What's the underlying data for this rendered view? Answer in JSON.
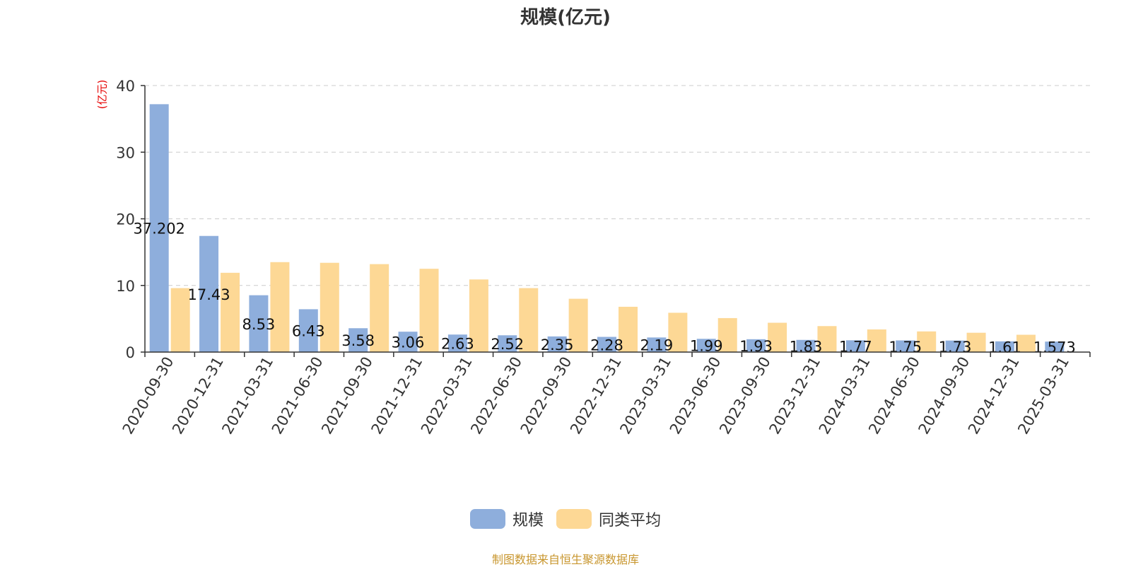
{
  "chart_data": {
    "type": "bar",
    "title": "规模(亿元)",
    "ylabel": "(亿元)",
    "ylim": [
      0,
      40
    ],
    "yticks": [
      0,
      10,
      20,
      30,
      40
    ],
    "grid": true,
    "legend_placement": "bottom",
    "categories": [
      "2020-09-30",
      "2020-12-31",
      "2021-03-31",
      "2021-06-30",
      "2021-09-30",
      "2021-12-31",
      "2022-03-31",
      "2022-06-30",
      "2022-09-30",
      "2022-12-31",
      "2023-03-31",
      "2023-06-30",
      "2023-09-30",
      "2023-12-31",
      "2024-03-31",
      "2024-06-30",
      "2024-09-30",
      "2024-12-31",
      "2025-03-31"
    ],
    "series": [
      {
        "name": "规模",
        "color": "#8eaedc",
        "values": [
          37.202,
          17.43,
          8.53,
          6.43,
          3.58,
          3.06,
          2.63,
          2.52,
          2.35,
          2.28,
          2.19,
          1.99,
          1.93,
          1.83,
          1.77,
          1.75,
          1.73,
          1.61,
          1.573
        ],
        "labels": [
          "37.202",
          "17.43",
          "8.53",
          "6.43",
          "3.58",
          "3.06",
          "2.63",
          "2.52",
          "2.35",
          "2.28",
          "2.19",
          "1.99",
          "1.93",
          "1.83",
          "1.77",
          "1.75",
          "1.73",
          "1.61",
          "1.573"
        ]
      },
      {
        "name": "同类平均",
        "color": "#fdd895",
        "values": [
          9.6,
          11.9,
          13.5,
          13.4,
          13.2,
          12.5,
          10.9,
          9.6,
          8.0,
          6.8,
          5.9,
          5.1,
          4.4,
          3.9,
          3.4,
          3.1,
          2.9,
          2.6,
          null
        ]
      }
    ]
  },
  "footer": {
    "source": "制图数据来自恒生聚源数据库"
  }
}
